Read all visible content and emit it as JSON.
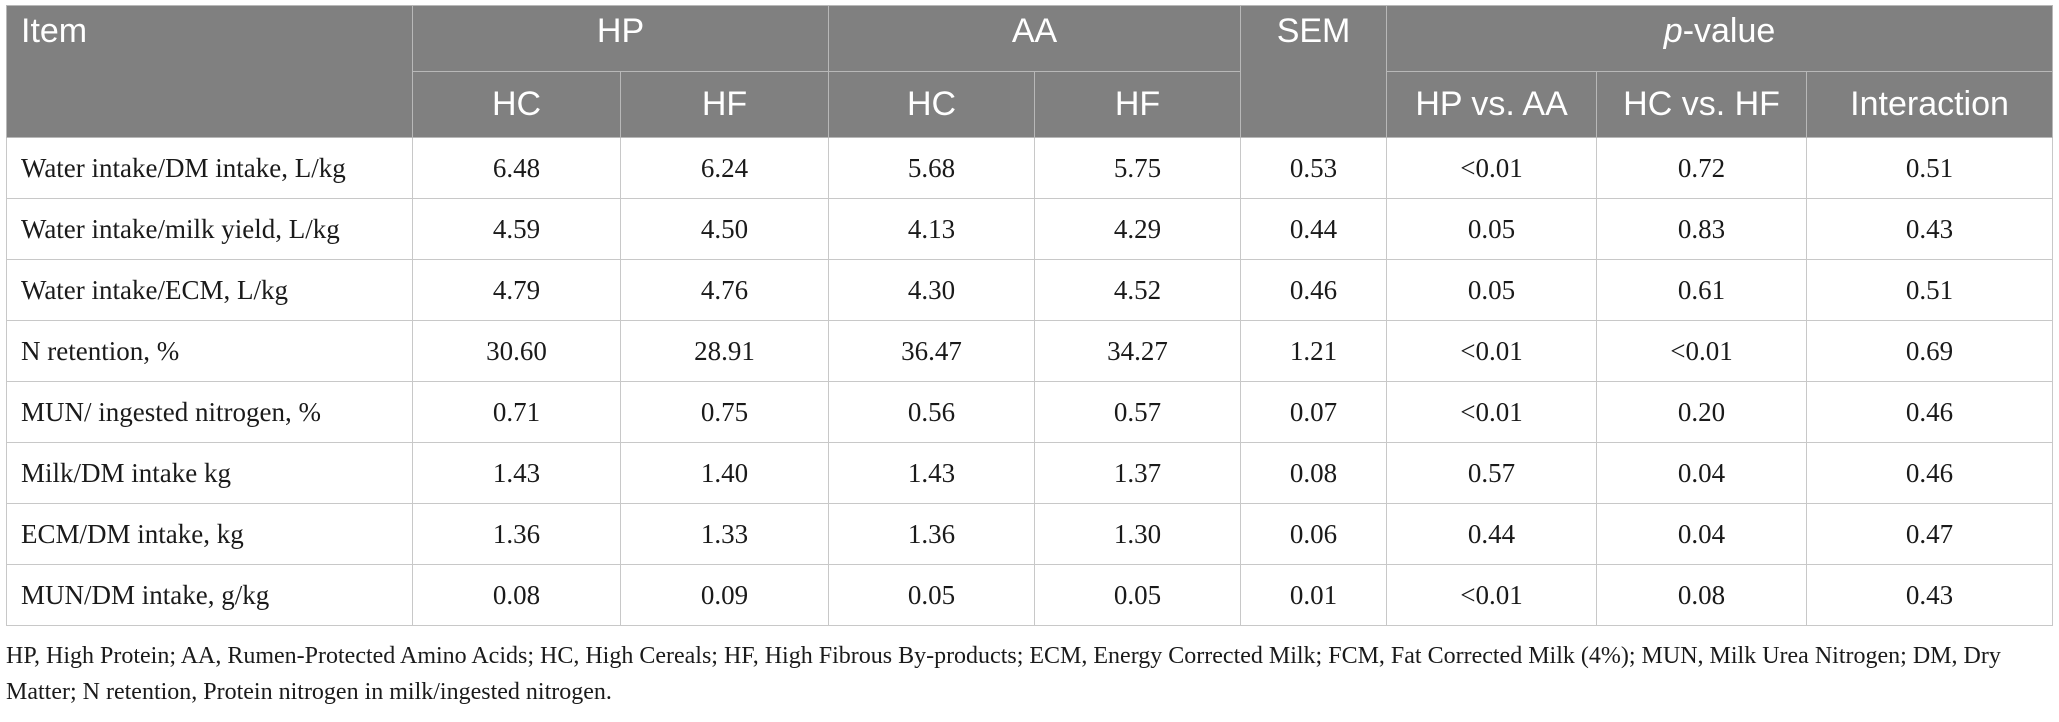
{
  "table": {
    "header": {
      "item": "Item",
      "group_hp": "HP",
      "group_aa": "AA",
      "sem": "SEM",
      "pvalue_p": "p",
      "pvalue_rest": "-value",
      "sub": [
        "HC",
        "HF",
        "HC",
        "HF"
      ],
      "p_sub": [
        "HP vs. AA",
        "HC vs. HF",
        "Interaction"
      ]
    },
    "rows": [
      {
        "label": "Water intake/DM intake, L/kg",
        "v": [
          "6.48",
          "6.24",
          "5.68",
          "5.75",
          "0.53",
          "<0.01",
          "0.72",
          "0.51"
        ]
      },
      {
        "label": "Water intake/milk yield, L/kg",
        "v": [
          "4.59",
          "4.50",
          "4.13",
          "4.29",
          "0.44",
          "0.05",
          "0.83",
          "0.43"
        ]
      },
      {
        "label": "Water intake/ECM, L/kg",
        "v": [
          "4.79",
          "4.76",
          "4.30",
          "4.52",
          "0.46",
          "0.05",
          "0.61",
          "0.51"
        ]
      },
      {
        "label": "N retention, %",
        "v": [
          "30.60",
          "28.91",
          "36.47",
          "34.27",
          "1.21",
          "<0.01",
          "<0.01",
          "0.69"
        ]
      },
      {
        "label": "MUN/ ingested nitrogen, %",
        "v": [
          "0.71",
          "0.75",
          "0.56",
          "0.57",
          "0.07",
          "<0.01",
          "0.20",
          "0.46"
        ]
      },
      {
        "label": "Milk/DM intake kg",
        "v": [
          "1.43",
          "1.40",
          "1.43",
          "1.37",
          "0.08",
          "0.57",
          "0.04",
          "0.46"
        ]
      },
      {
        "label": "ECM/DM intake, kg",
        "v": [
          "1.36",
          "1.33",
          "1.36",
          "1.30",
          "0.06",
          "0.44",
          "0.04",
          "0.47"
        ]
      },
      {
        "label": "MUN/DM intake, g/kg",
        "v": [
          "0.08",
          "0.09",
          "0.05",
          "0.05",
          "0.01",
          "<0.01",
          "0.08",
          "0.43"
        ]
      }
    ]
  },
  "footnote": "HP, High Protein; AA, Rumen-Protected Amino Acids; HC, High Cereals; HF, High Fibrous By-products; ECM, Energy Corrected Milk; FCM, Fat Corrected Milk (4%); MUN, Milk Urea Nitrogen; DM, Dry Matter; N retention, Protein nitrogen in milk/ingested nitrogen."
}
